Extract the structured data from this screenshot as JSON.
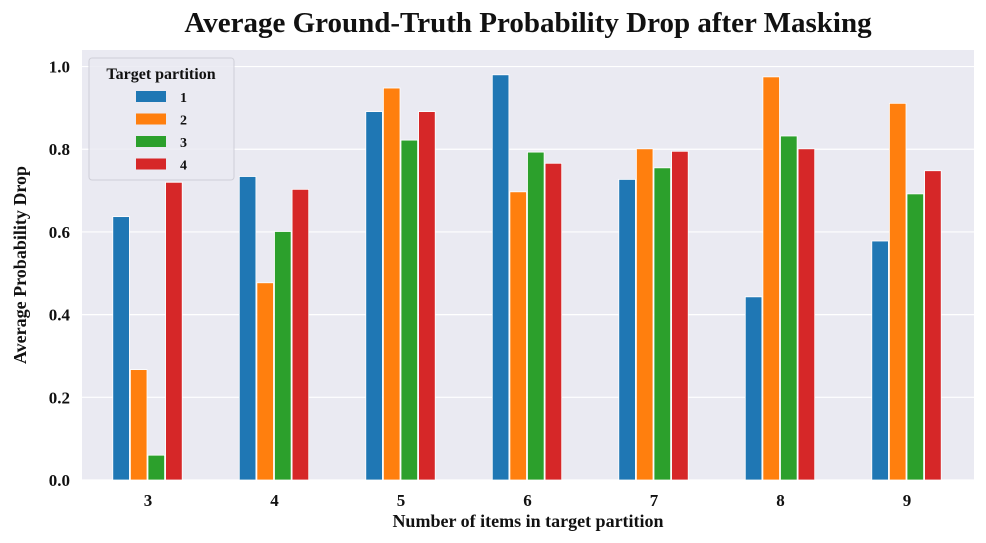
{
  "chart_data": {
    "type": "bar",
    "title": "Average Ground-Truth Probability Drop after Masking",
    "xlabel": "Number of items in target partition",
    "ylabel": "Average Probability Drop",
    "ylim": [
      0,
      1.04
    ],
    "yticks": [
      0.0,
      0.2,
      0.4,
      0.6,
      0.8,
      1.0
    ],
    "ytick_labels": [
      "0.0",
      "0.2",
      "0.4",
      "0.6",
      "0.8",
      "1.0"
    ],
    "grid": true,
    "categories": [
      "3",
      "4",
      "5",
      "6",
      "7",
      "8",
      "9"
    ],
    "legend": {
      "title": "Target partition",
      "placement": "top-left"
    },
    "series": [
      {
        "name": "1",
        "color": "#1f77b4",
        "values": [
          0.637,
          0.734,
          0.891,
          0.98,
          0.727,
          0.443,
          0.578
        ]
      },
      {
        "name": "2",
        "color": "#ff7f0e",
        "values": [
          0.267,
          0.477,
          0.948,
          0.697,
          0.801,
          0.975,
          0.911
        ]
      },
      {
        "name": "3",
        "color": "#2ca02c",
        "values": [
          0.06,
          0.601,
          0.822,
          0.793,
          0.755,
          0.832,
          0.692
        ]
      },
      {
        "name": "4",
        "color": "#d62728",
        "values": [
          0.72,
          0.703,
          0.891,
          0.766,
          0.795,
          0.801,
          0.748
        ]
      }
    ]
  },
  "colors": {
    "plot_background": "#eaeaf2",
    "grid": "#ffffff"
  }
}
